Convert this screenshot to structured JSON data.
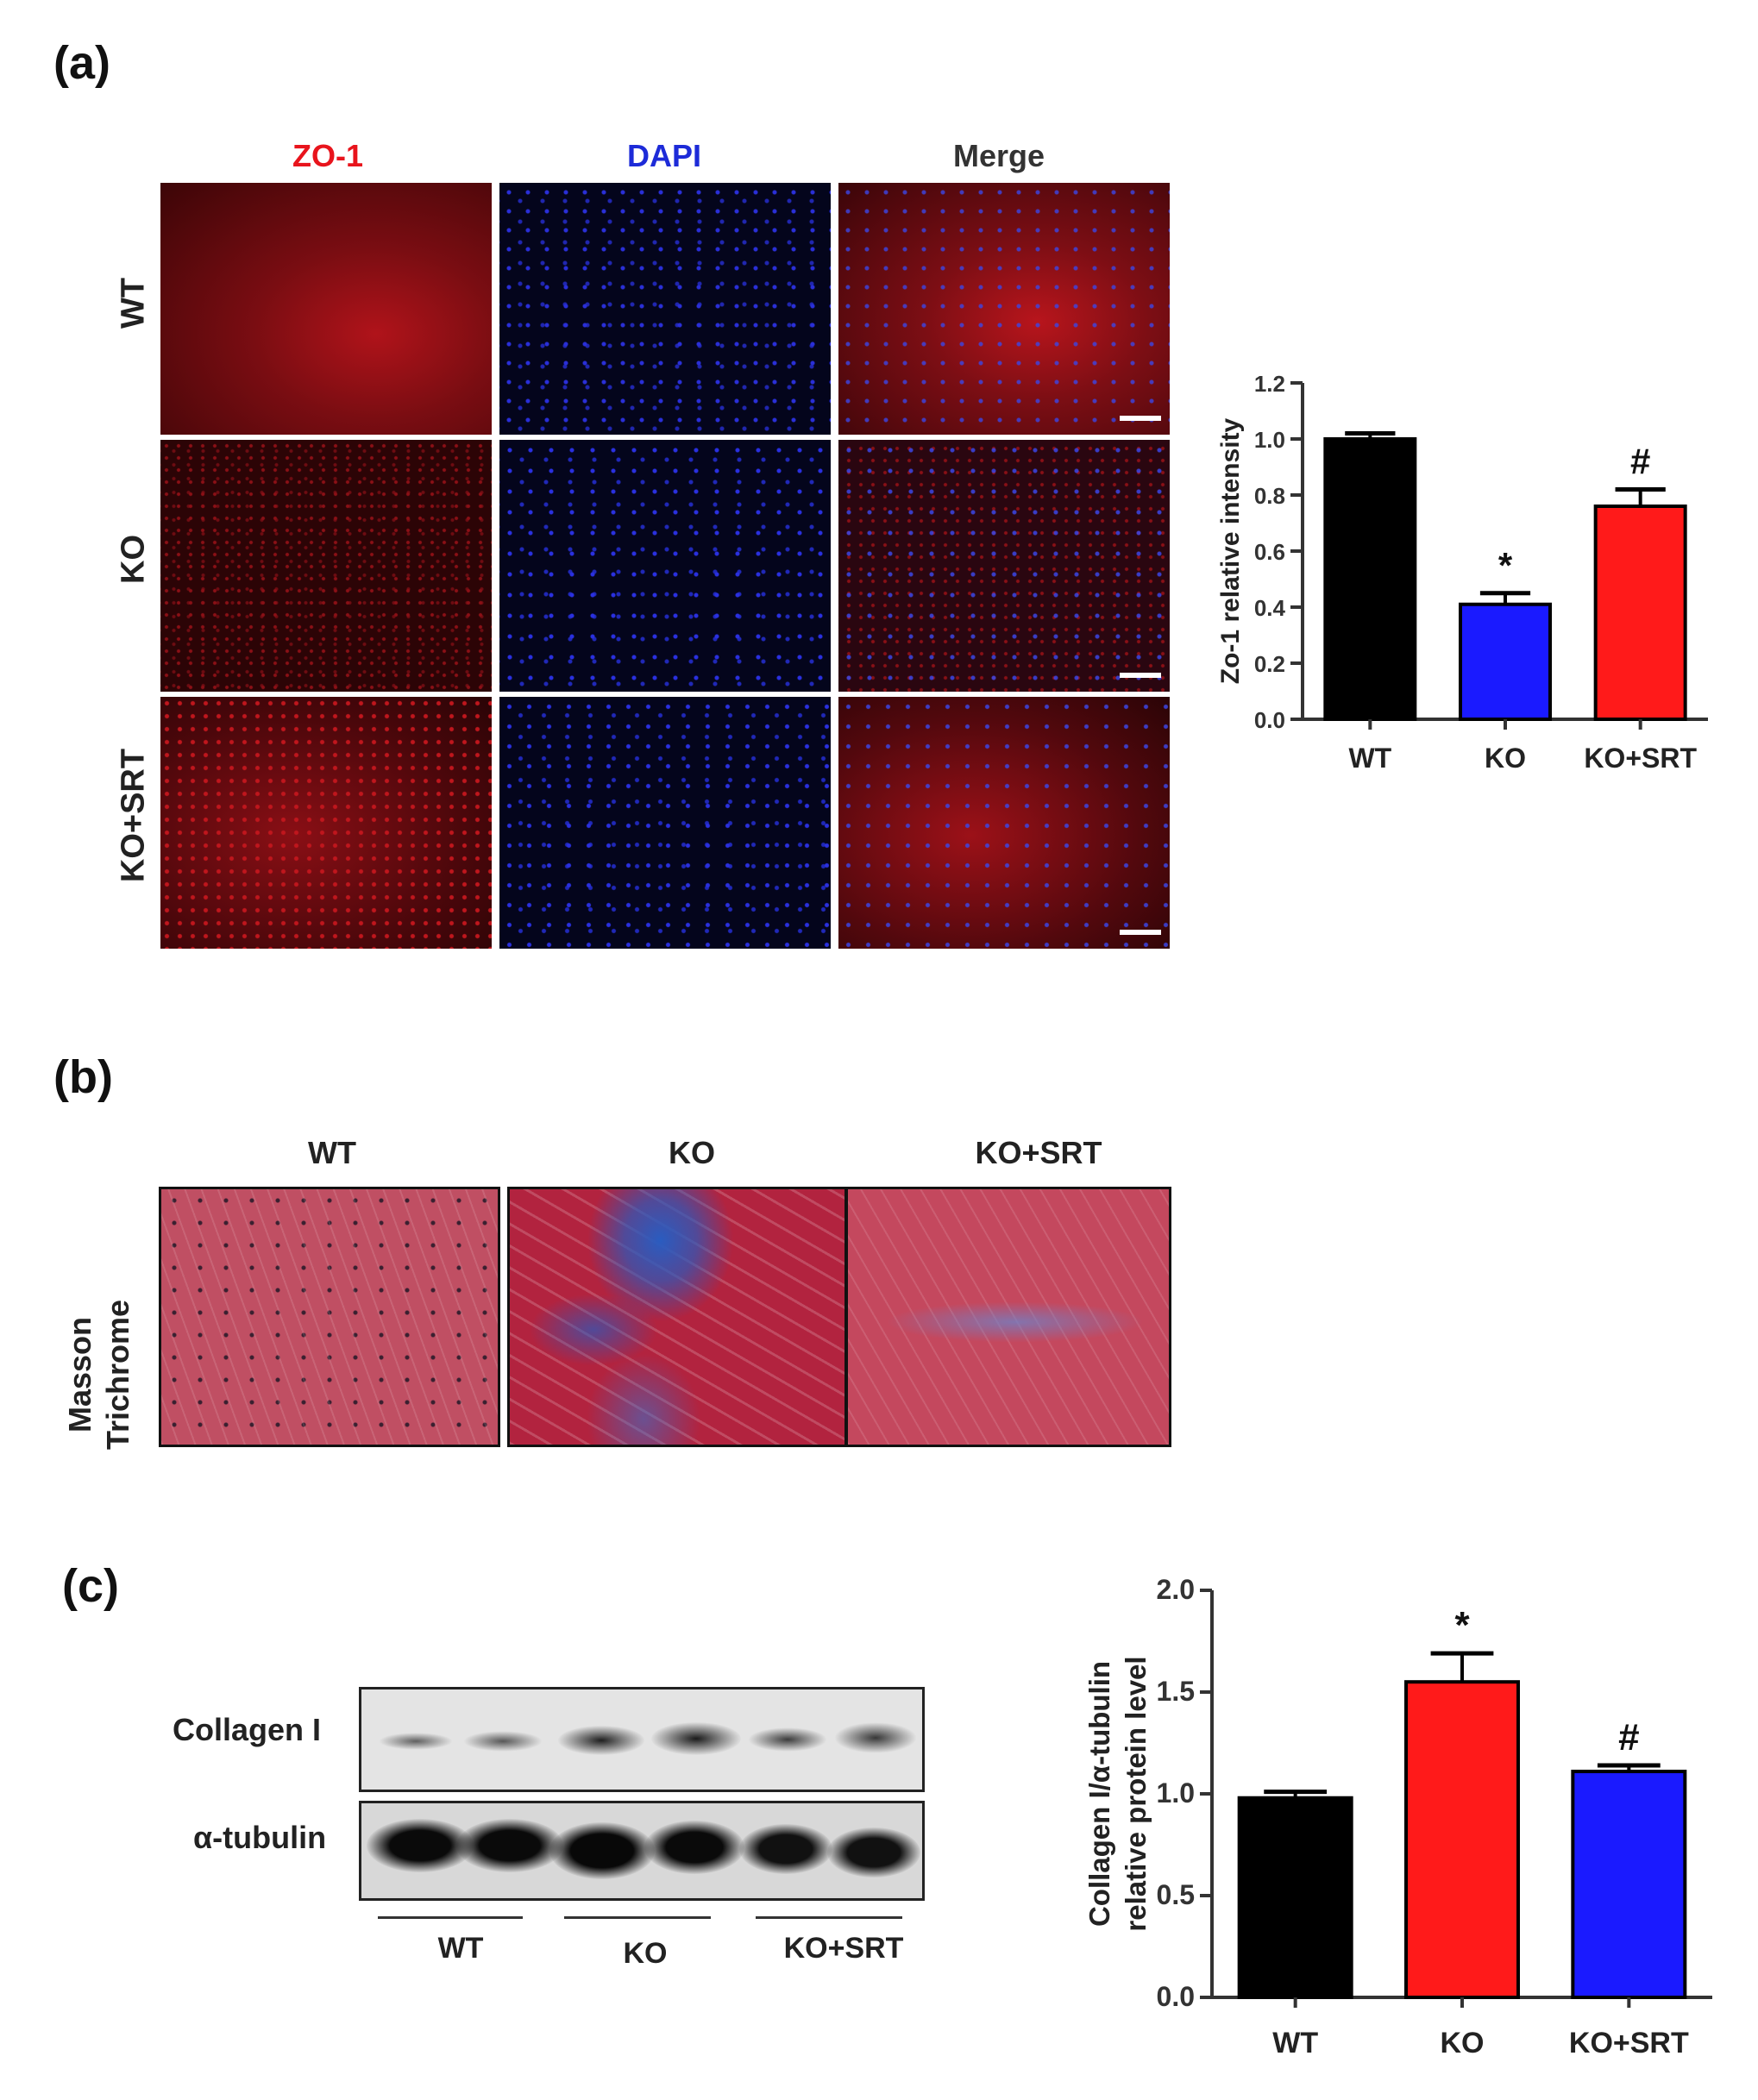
{
  "panel_a": {
    "label": "(a)",
    "columns": [
      {
        "label": "ZO-1",
        "color": "#e8141c"
      },
      {
        "label": "DAPI",
        "color": "#1d2bd8"
      },
      {
        "label": "Merge",
        "color": "#333333"
      }
    ],
    "rows": [
      "WT",
      "KO",
      "KO+SRT"
    ]
  },
  "panel_b": {
    "label": "(b)",
    "columns": [
      "WT",
      "KO",
      "KO+SRT"
    ],
    "row_label_line1": "Masson",
    "row_label_line2": "Trichrome"
  },
  "panel_c": {
    "label": "(c)",
    "blot_rows": [
      "Collagen I",
      "α-tubulin"
    ],
    "groups": [
      "WT",
      "KO",
      "KO+SRT"
    ]
  },
  "chart_data": [
    {
      "type": "bar",
      "categories": [
        "WT",
        "KO",
        "KO+SRT"
      ],
      "values": [
        1.0,
        0.41,
        0.76
      ],
      "errors": [
        0.02,
        0.04,
        0.06
      ],
      "colors": [
        "#000000",
        "#1a1aff",
        "#ff1a1a"
      ],
      "annotations": [
        "",
        "*",
        "#"
      ],
      "title": "",
      "xlabel": "",
      "ylabel": "Zo-1 relative intensity",
      "ylim": [
        0,
        1.2
      ],
      "yticks": [
        "0.0",
        "0.2",
        "0.4",
        "0.6",
        "0.8",
        "1.0",
        "1.2"
      ]
    },
    {
      "type": "bar",
      "categories": [
        "WT",
        "KO",
        "KO+SRT"
      ],
      "values": [
        0.98,
        1.55,
        1.11
      ],
      "errors": [
        0.03,
        0.14,
        0.03
      ],
      "colors": [
        "#000000",
        "#ff1a1a",
        "#1a1aff"
      ],
      "annotations": [
        "",
        "*",
        "#"
      ],
      "title": "",
      "xlabel": "",
      "ylabel_line1": "Collagen I/α-tubulin",
      "ylabel_line2": "relative protein level",
      "ylim": [
        0,
        2.0
      ],
      "yticks": [
        "0.0",
        "0.5",
        "1.0",
        "1.5",
        "2.0"
      ]
    }
  ]
}
